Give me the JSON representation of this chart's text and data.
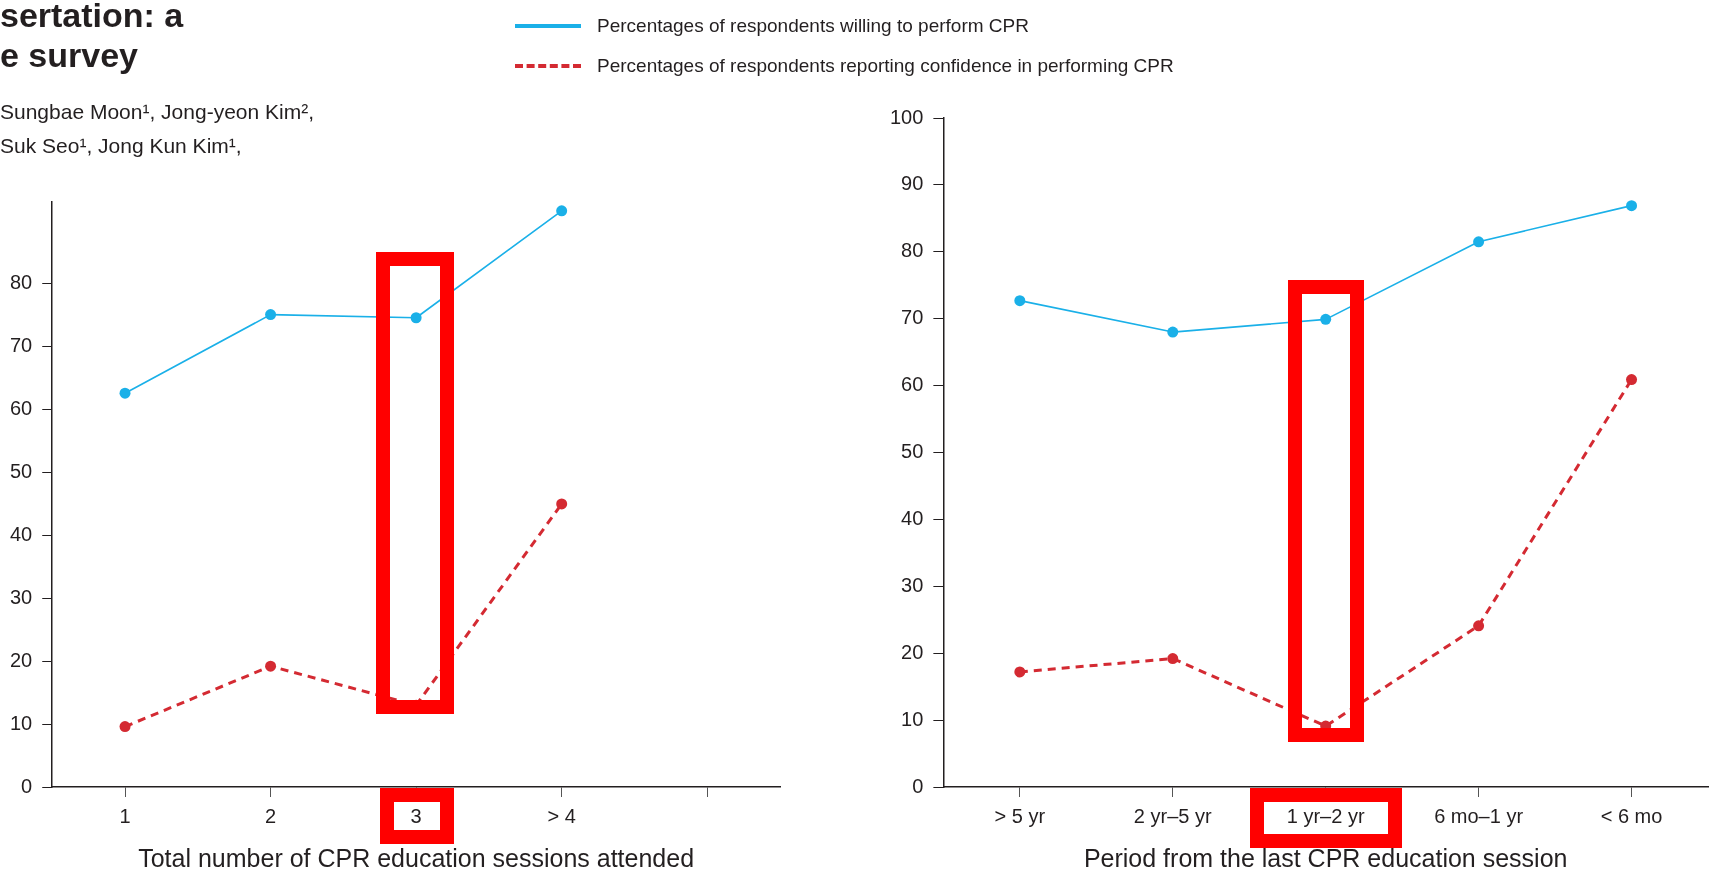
{
  "chart_data": [
    {
      "type": "line",
      "xlabel": "Total number of CPR education sessions attended",
      "categories": [
        "1",
        "2",
        "3",
        "> 4",
        null
      ],
      "ylim": [
        0,
        93
      ],
      "yticks": [
        0,
        10,
        20,
        30,
        40,
        50,
        60,
        70,
        80
      ],
      "grid": false,
      "legend": "top",
      "marker": "circle",
      "annotations": [
        "sertation: a",
        "e survey",
        "Sungbae Moon¹, Jong-yeon Kim²,",
        "Suk Seo¹, Jong Kun Kim¹,"
      ],
      "series": [
        {
          "name": "Percentages of respondents willing to perform CPR",
          "color": "#1ab0e8",
          "line_style": "solid",
          "values": [
            62.6,
            75.1,
            74.6,
            91.6,
            null
          ]
        },
        {
          "name": "Percentages of respondents reporting confidence in performing CPR",
          "color": "#d42a32",
          "line_style": "dashed",
          "values": [
            9.6,
            19.2,
            13.0,
            45.0,
            null
          ]
        }
      ]
    },
    {
      "type": "line",
      "xlabel": "Period from the last CPR education session",
      "categories": [
        "> 5 yr",
        "2 yr–5 yr",
        "1 yr–2 yr",
        "6 mo–1 yr",
        "< 6 mo"
      ],
      "ylim": [
        0,
        100
      ],
      "yticks": [
        0,
        10,
        20,
        30,
        40,
        50,
        60,
        70,
        80,
        90,
        100
      ],
      "grid": false,
      "marker": "circle",
      "series": [
        {
          "color": "#1ab0e8",
          "line_style": "solid",
          "values": [
            72.7,
            68.0,
            69.9,
            81.5,
            86.9
          ]
        },
        {
          "color": "#d42a32",
          "line_style": "dashed",
          "values": [
            17.2,
            19.2,
            9.1,
            24.1,
            60.9
          ]
        }
      ]
    }
  ]
}
